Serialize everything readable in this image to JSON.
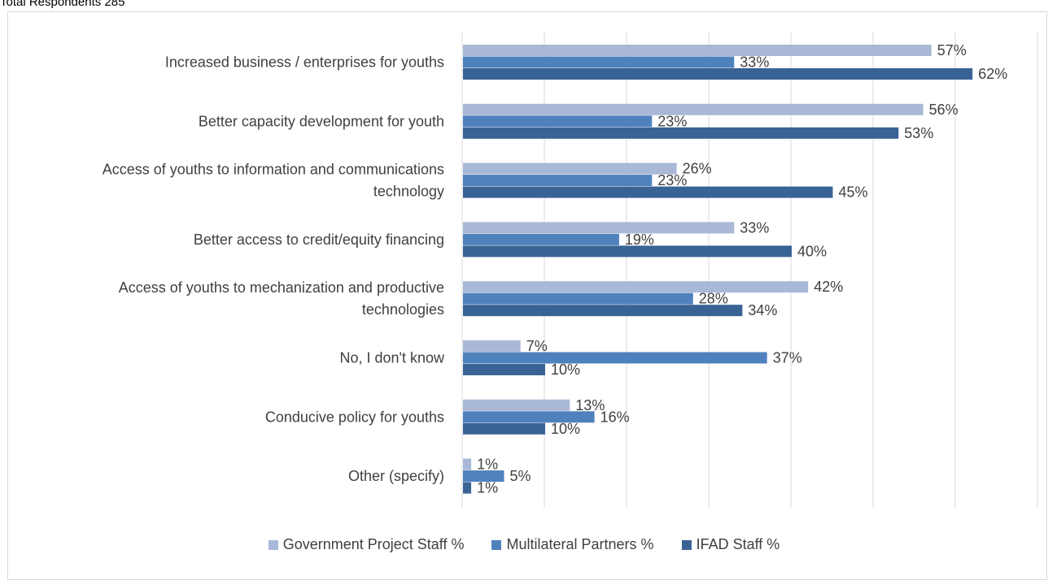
{
  "header": {
    "text": "Total Respondents 285"
  },
  "chart_data": {
    "type": "bar",
    "orientation": "horizontal",
    "categories": [
      [
        "Increased business / enterprises for youths"
      ],
      [
        "Better capacity development for youth"
      ],
      [
        "Access of youths to information and communications",
        "technology"
      ],
      [
        "Better access to credit/equity financing"
      ],
      [
        "Access of youths to mechanization and productive",
        "technologies"
      ],
      [
        "No, I don't know"
      ],
      [
        "Conducive policy for youths"
      ],
      [
        "Other (specify)"
      ]
    ],
    "series": [
      {
        "name": "Government Project Staff %",
        "color": "#a9b8d7",
        "values": [
          57,
          56,
          26,
          33,
          42,
          7,
          13,
          1
        ],
        "labels": [
          "57%",
          "56%",
          "26%",
          "33%",
          "42%",
          "7%",
          "13%",
          "1%"
        ]
      },
      {
        "name": "Multilateral Partners %",
        "color": "#4f81bd",
        "values": [
          33,
          23,
          23,
          19,
          28,
          37,
          16,
          5
        ],
        "labels": [
          "33%",
          "23%",
          "23%",
          "19%",
          "28%",
          "37%",
          "16%",
          "5%"
        ]
      },
      {
        "name": "IFAD Staff %",
        "color": "#3a6395",
        "values": [
          62,
          53,
          45,
          40,
          34,
          10,
          10,
          1
        ],
        "labels": [
          "62%",
          "53%",
          "45%",
          "40%",
          "34%",
          "10%",
          "10%",
          "1%"
        ]
      }
    ],
    "xlim": [
      0,
      70
    ],
    "grid": true,
    "legend_position": "bottom"
  }
}
